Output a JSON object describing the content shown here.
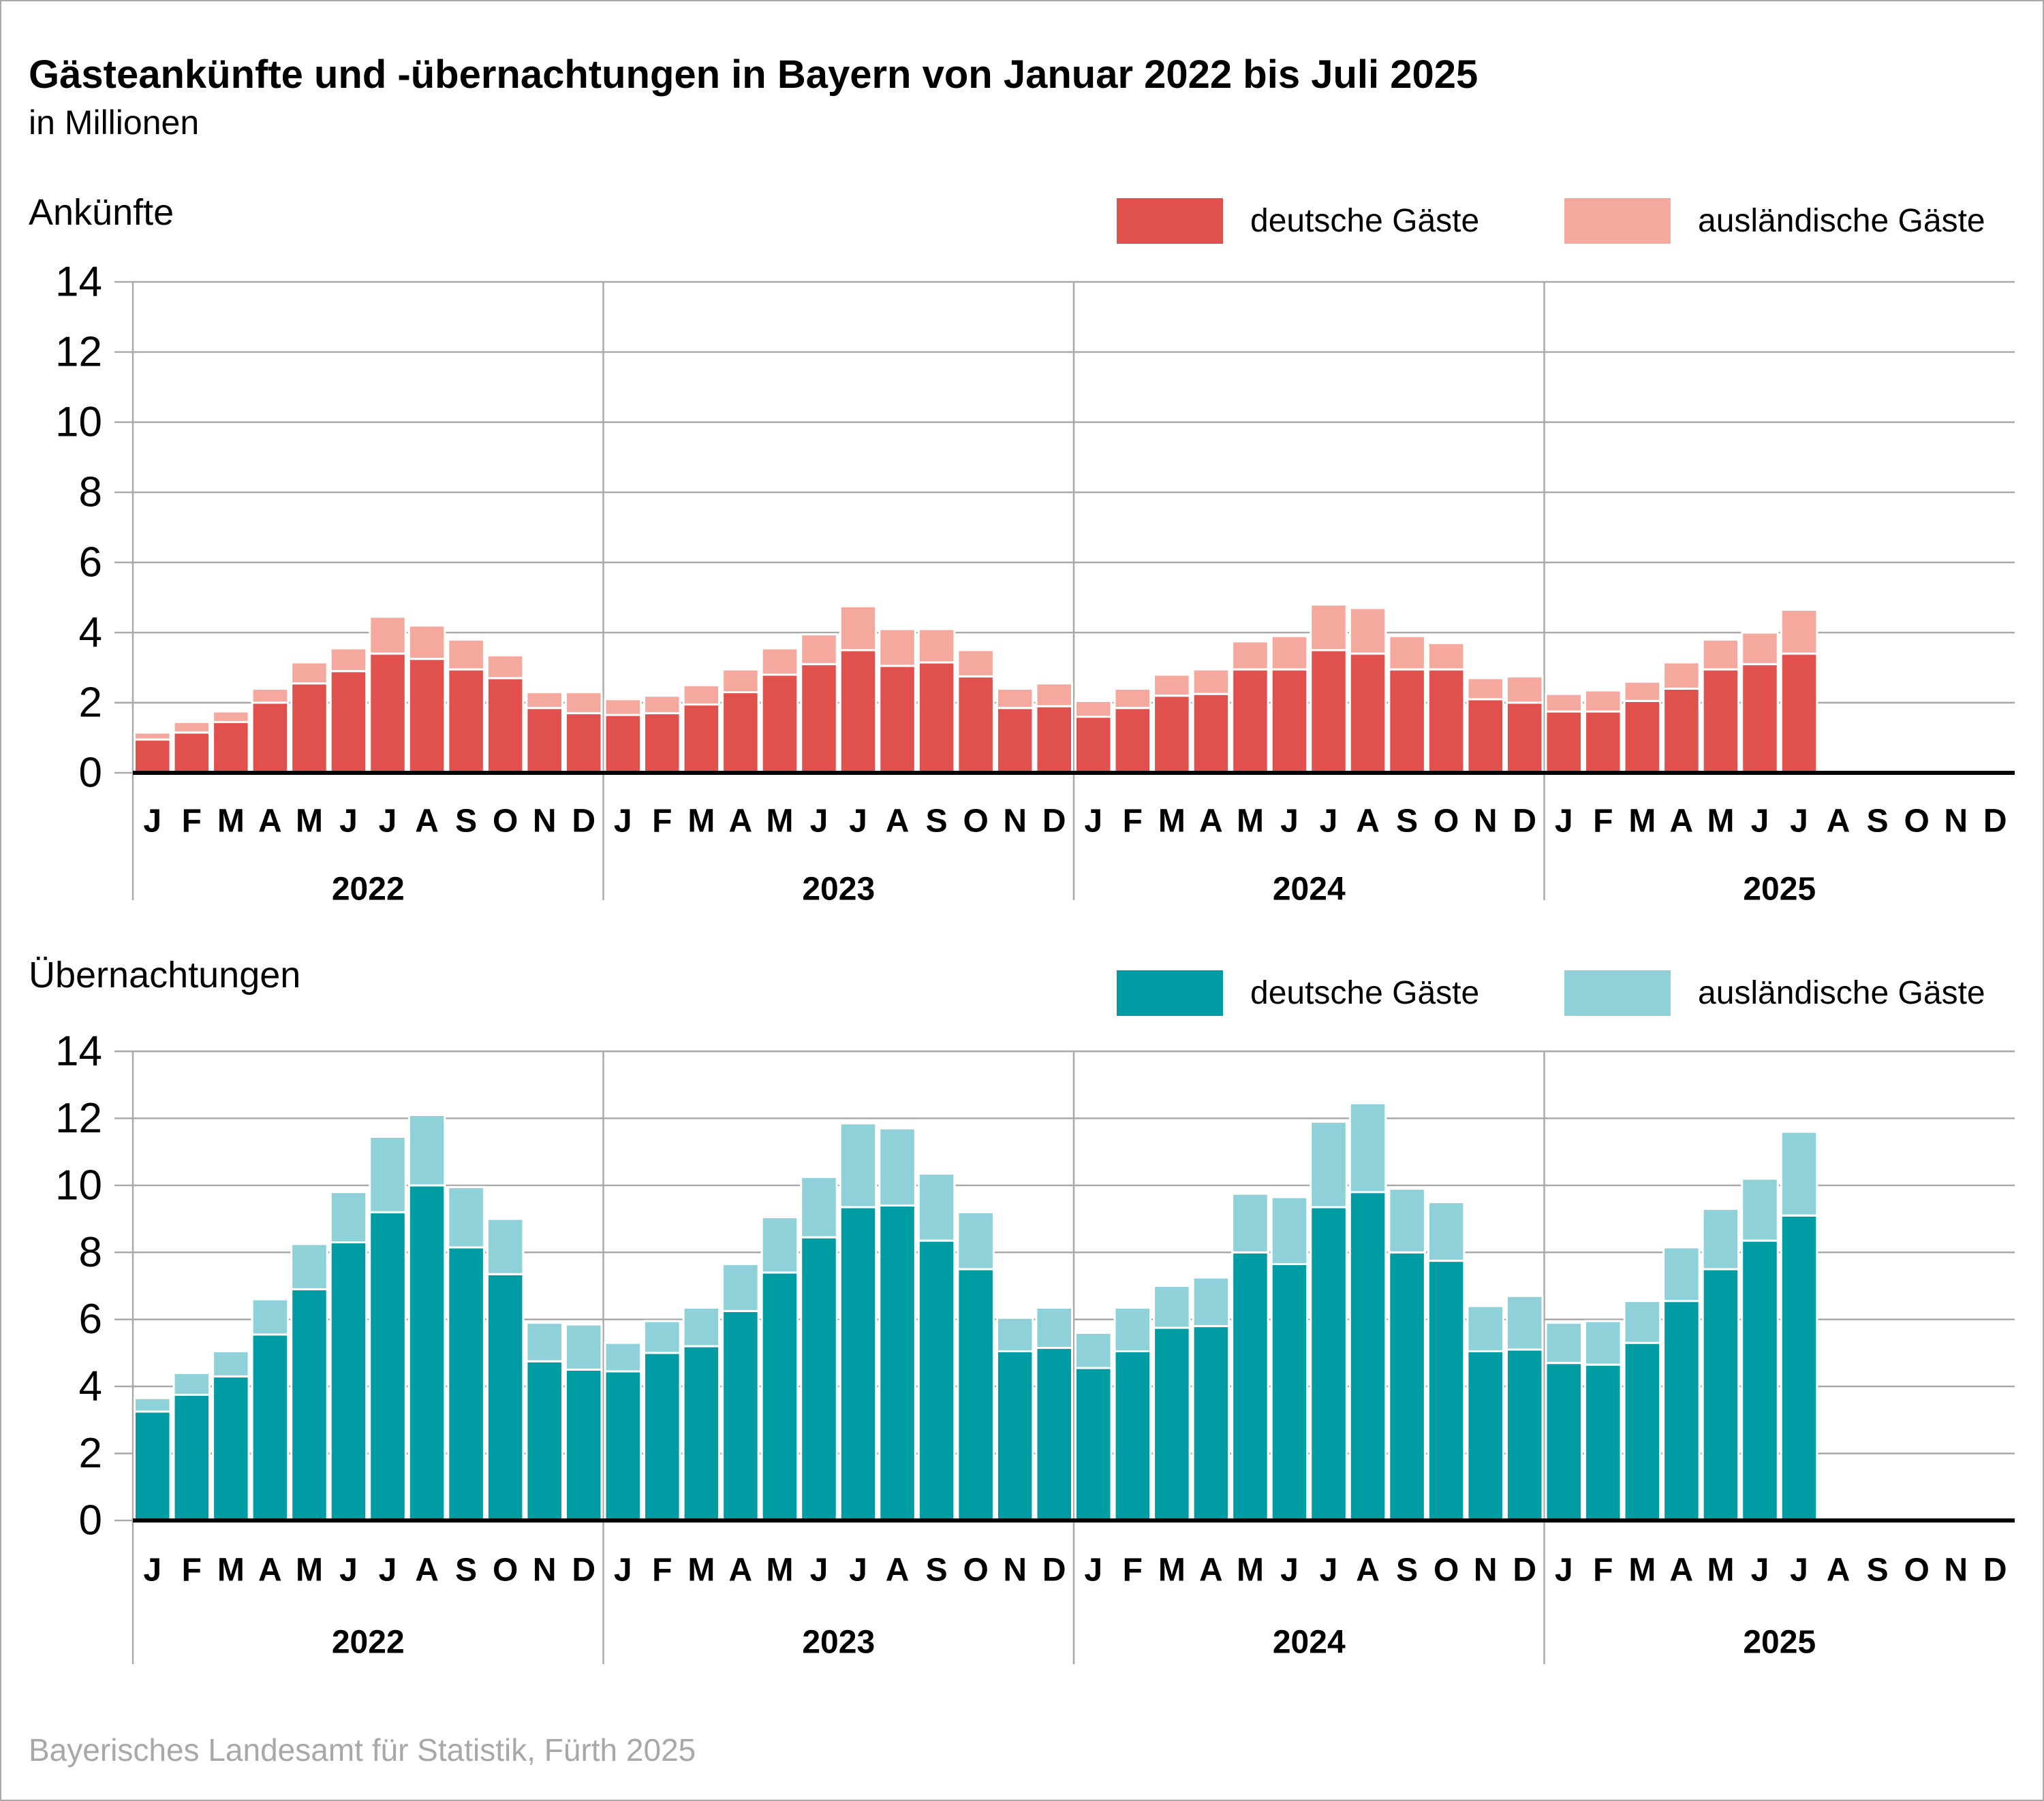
{
  "header": {
    "title": "Gästeankünfte und -übernachtungen in Bayern von Januar 2022 bis Juli 2025",
    "subtitle": "in Millionen"
  },
  "footer": {
    "source": "Bayerisches Landesamt für Statistik, Fürth 2025"
  },
  "colors": {
    "grid": "#a9a9a9",
    "axis_line": "#000000",
    "bar_outline": "#ffffff",
    "footer_text": "#a8a8a8",
    "arrivals_domestic": "#e0504c",
    "arrivals_foreign": "#f5a99e",
    "overnights_domestic": "#009ca4",
    "overnights_foreign": "#8fd1d8"
  },
  "axis": {
    "y_min": 0,
    "y_max": 14,
    "y_step": 2,
    "month_labels": [
      "J",
      "F",
      "M",
      "A",
      "M",
      "J",
      "J",
      "A",
      "S",
      "O",
      "N",
      "D"
    ],
    "year_labels": [
      "2022",
      "2023",
      "2024",
      "2025"
    ]
  },
  "chart_data": [
    {
      "id": "ankuenfte",
      "type": "bar",
      "stacked": true,
      "title": "Ankünfte",
      "ylim": [
        0,
        14
      ],
      "grid": true,
      "legend_position": "top-right",
      "legend": [
        {
          "label": "deutsche Gäste",
          "color": "#e0504c"
        },
        {
          "label": "ausländische Gäste",
          "color": "#f5a99e"
        }
      ],
      "series": [
        {
          "name": "deutsche Gäste",
          "color": "#e0504c",
          "values": {
            "2022": [
              0.95,
              1.15,
              1.45,
              2.0,
              2.55,
              2.9,
              3.4,
              3.25,
              2.95,
              2.7,
              1.85,
              1.7
            ],
            "2023": [
              1.65,
              1.7,
              1.95,
              2.3,
              2.8,
              3.1,
              3.5,
              3.05,
              3.15,
              2.75,
              1.85,
              1.9
            ],
            "2024": [
              1.6,
              1.85,
              2.2,
              2.25,
              2.95,
              2.95,
              3.5,
              3.4,
              2.95,
              2.95,
              2.1,
              2.0
            ],
            "2025": [
              1.75,
              1.75,
              2.05,
              2.4,
              2.95,
              3.1,
              3.4
            ]
          }
        },
        {
          "name": "ausländische Gäste",
          "color": "#f5a99e",
          "values": {
            "2022": [
              0.2,
              0.3,
              0.3,
              0.4,
              0.6,
              0.65,
              1.05,
              0.95,
              0.85,
              0.65,
              0.45,
              0.6
            ],
            "2023": [
              0.45,
              0.5,
              0.55,
              0.65,
              0.75,
              0.85,
              1.25,
              1.05,
              0.95,
              0.75,
              0.55,
              0.65
            ],
            "2024": [
              0.45,
              0.55,
              0.6,
              0.7,
              0.8,
              0.95,
              1.3,
              1.3,
              0.95,
              0.75,
              0.6,
              0.75
            ],
            "2025": [
              0.5,
              0.6,
              0.55,
              0.75,
              0.85,
              0.9,
              1.25
            ]
          }
        }
      ]
    },
    {
      "id": "uebernachtungen",
      "type": "bar",
      "stacked": true,
      "title": "Übernachtungen",
      "ylim": [
        0,
        14
      ],
      "grid": true,
      "legend_position": "top-right",
      "legend": [
        {
          "label": "deutsche Gäste",
          "color": "#009ca4"
        },
        {
          "label": "ausländische Gäste",
          "color": "#8fd1d8"
        }
      ],
      "series": [
        {
          "name": "deutsche Gäste",
          "color": "#009ca4",
          "values": {
            "2022": [
              3.25,
              3.75,
              4.3,
              5.55,
              6.9,
              8.3,
              9.2,
              10.0,
              8.15,
              7.35,
              4.75,
              4.5
            ],
            "2023": [
              4.45,
              5.0,
              5.2,
              6.25,
              7.4,
              8.45,
              9.35,
              9.4,
              8.35,
              7.5,
              5.05,
              5.15
            ],
            "2024": [
              4.55,
              5.05,
              5.75,
              5.8,
              8.0,
              7.65,
              9.35,
              9.8,
              8.0,
              7.75,
              5.05,
              5.1
            ],
            "2025": [
              4.7,
              4.65,
              5.3,
              6.55,
              7.5,
              8.35,
              9.1
            ]
          }
        },
        {
          "name": "ausländische Gäste",
          "color": "#8fd1d8",
          "values": {
            "2022": [
              0.4,
              0.65,
              0.75,
              1.05,
              1.35,
              1.5,
              2.25,
              2.1,
              1.8,
              1.65,
              1.15,
              1.35
            ],
            "2023": [
              0.85,
              0.95,
              1.15,
              1.4,
              1.65,
              1.8,
              2.5,
              2.3,
              2.0,
              1.7,
              1.0,
              1.2
            ],
            "2024": [
              1.05,
              1.3,
              1.25,
              1.45,
              1.75,
              2.0,
              2.55,
              2.65,
              1.9,
              1.75,
              1.35,
              1.6
            ],
            "2025": [
              1.2,
              1.3,
              1.25,
              1.6,
              1.8,
              1.85,
              2.5
            ]
          }
        }
      ]
    }
  ]
}
